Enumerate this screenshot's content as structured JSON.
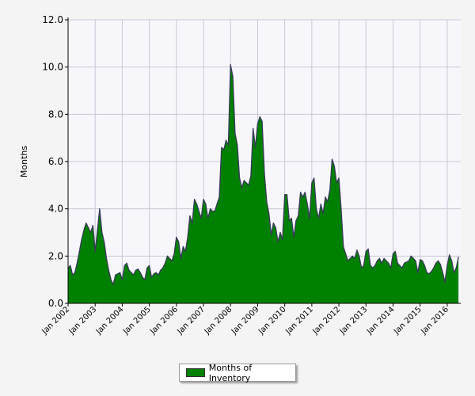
{
  "chart_data": {
    "type": "area",
    "title": "",
    "xlabel": "",
    "ylabel": "Months",
    "ylim": [
      0,
      12
    ],
    "yticks": [
      "0.0",
      "2.0",
      "4.0",
      "6.0",
      "8.0",
      "10.0",
      "12.0"
    ],
    "xlim": [
      "2002-01",
      "2016-07"
    ],
    "xticks": [
      "Jan 2002",
      "Jan 2003",
      "Jan 2004",
      "Jan 2005",
      "Jan 2006",
      "Jan 2007",
      "Jan 2008",
      "Jan 2009",
      "Jan 2010",
      "Jan 2011",
      "Jan 2012",
      "Jan 2013",
      "Jan 2014",
      "Jan 2015",
      "Jan 2016"
    ],
    "grid": true,
    "legend_position": "bottom-center",
    "colors": {
      "fill": "#008000",
      "line": "#3a3a5a",
      "plot_background": "#f7f7fb",
      "grid": "#c8c8d8"
    },
    "series": [
      {
        "name": "Months of Inventory",
        "points": [
          [
            "2002-01",
            1.5
          ],
          [
            "2002-02",
            1.6
          ],
          [
            "2002-03",
            1.2
          ],
          [
            "2002-04",
            1.3
          ],
          [
            "2002-05",
            1.7
          ],
          [
            "2002-06",
            2.2
          ],
          [
            "2002-07",
            2.7
          ],
          [
            "2002-08",
            3.1
          ],
          [
            "2002-09",
            3.4
          ],
          [
            "2002-10",
            3.2
          ],
          [
            "2002-11",
            3.0
          ],
          [
            "2002-12",
            3.3
          ],
          [
            "2003-01",
            2.2
          ],
          [
            "2003-02",
            3.1
          ],
          [
            "2003-03",
            4.0
          ],
          [
            "2003-04",
            3.0
          ],
          [
            "2003-05",
            2.6
          ],
          [
            "2003-06",
            1.9
          ],
          [
            "2003-07",
            1.4
          ],
          [
            "2003-08",
            1.0
          ],
          [
            "2003-09",
            0.8
          ],
          [
            "2003-10",
            1.2
          ],
          [
            "2003-11",
            1.25
          ],
          [
            "2003-12",
            1.3
          ],
          [
            "2004-01",
            1.0
          ],
          [
            "2004-02",
            1.6
          ],
          [
            "2004-03",
            1.7
          ],
          [
            "2004-04",
            1.4
          ],
          [
            "2004-05",
            1.3
          ],
          [
            "2004-06",
            1.2
          ],
          [
            "2004-07",
            1.4
          ],
          [
            "2004-08",
            1.45
          ],
          [
            "2004-09",
            1.3
          ],
          [
            "2004-10",
            1.1
          ],
          [
            "2004-11",
            1.0
          ],
          [
            "2004-12",
            1.5
          ],
          [
            "2005-01",
            1.6
          ],
          [
            "2005-02",
            1.1
          ],
          [
            "2005-03",
            1.25
          ],
          [
            "2005-04",
            1.3
          ],
          [
            "2005-05",
            1.2
          ],
          [
            "2005-06",
            1.4
          ],
          [
            "2005-07",
            1.5
          ],
          [
            "2005-08",
            1.7
          ],
          [
            "2005-09",
            2.0
          ],
          [
            "2005-10",
            1.9
          ],
          [
            "2005-11",
            1.8
          ],
          [
            "2005-12",
            2.1
          ],
          [
            "2006-01",
            2.8
          ],
          [
            "2006-02",
            2.6
          ],
          [
            "2006-03",
            1.9
          ],
          [
            "2006-04",
            2.4
          ],
          [
            "2006-05",
            2.2
          ],
          [
            "2006-06",
            2.8
          ],
          [
            "2006-07",
            3.7
          ],
          [
            "2006-08",
            3.4
          ],
          [
            "2006-09",
            4.4
          ],
          [
            "2006-10",
            4.2
          ],
          [
            "2006-11",
            3.9
          ],
          [
            "2006-12",
            3.6
          ],
          [
            "2007-01",
            4.4
          ],
          [
            "2007-02",
            4.2
          ],
          [
            "2007-03",
            3.6
          ],
          [
            "2007-04",
            4.0
          ],
          [
            "2007-05",
            3.9
          ],
          [
            "2007-06",
            3.9
          ],
          [
            "2007-07",
            4.2
          ],
          [
            "2007-08",
            4.5
          ],
          [
            "2007-09",
            6.6
          ],
          [
            "2007-10",
            6.5
          ],
          [
            "2007-11",
            6.9
          ],
          [
            "2007-12",
            6.7
          ],
          [
            "2008-01",
            10.1
          ],
          [
            "2008-02",
            9.6
          ],
          [
            "2008-03",
            7.2
          ],
          [
            "2008-04",
            6.7
          ],
          [
            "2008-05",
            5.3
          ],
          [
            "2008-06",
            4.9
          ],
          [
            "2008-07",
            5.2
          ],
          [
            "2008-08",
            5.1
          ],
          [
            "2008-09",
            5.0
          ],
          [
            "2008-10",
            5.4
          ],
          [
            "2008-11",
            7.4
          ],
          [
            "2008-12",
            6.6
          ],
          [
            "2009-01",
            7.6
          ],
          [
            "2009-02",
            7.9
          ],
          [
            "2009-03",
            7.7
          ],
          [
            "2009-04",
            5.5
          ],
          [
            "2009-05",
            4.3
          ],
          [
            "2009-06",
            3.8
          ],
          [
            "2009-07",
            2.9
          ],
          [
            "2009-08",
            3.4
          ],
          [
            "2009-09",
            3.2
          ],
          [
            "2009-10",
            2.6
          ],
          [
            "2009-11",
            3.0
          ],
          [
            "2009-12",
            2.7
          ],
          [
            "2010-01",
            4.6
          ],
          [
            "2010-02",
            4.6
          ],
          [
            "2010-03",
            3.5
          ],
          [
            "2010-04",
            3.6
          ],
          [
            "2010-05",
            2.8
          ],
          [
            "2010-06",
            3.5
          ],
          [
            "2010-07",
            3.7
          ],
          [
            "2010-08",
            4.7
          ],
          [
            "2010-09",
            4.5
          ],
          [
            "2010-10",
            4.7
          ],
          [
            "2010-11",
            4.2
          ],
          [
            "2010-12",
            3.6
          ],
          [
            "2011-01",
            5.1
          ],
          [
            "2011-02",
            5.3
          ],
          [
            "2011-03",
            4.0
          ],
          [
            "2011-04",
            3.6
          ],
          [
            "2011-05",
            4.2
          ],
          [
            "2011-06",
            3.8
          ],
          [
            "2011-07",
            4.5
          ],
          [
            "2011-08",
            4.3
          ],
          [
            "2011-09",
            4.8
          ],
          [
            "2011-10",
            6.1
          ],
          [
            "2011-11",
            5.8
          ],
          [
            "2011-12",
            5.1
          ],
          [
            "2012-01",
            5.3
          ],
          [
            "2012-02",
            4.0
          ],
          [
            "2012-03",
            2.4
          ],
          [
            "2012-04",
            2.1
          ],
          [
            "2012-05",
            1.8
          ],
          [
            "2012-06",
            1.9
          ],
          [
            "2012-07",
            2.0
          ],
          [
            "2012-08",
            1.9
          ],
          [
            "2012-09",
            2.25
          ],
          [
            "2012-10",
            2.0
          ],
          [
            "2012-11",
            1.5
          ],
          [
            "2012-12",
            1.6
          ],
          [
            "2013-01",
            2.2
          ],
          [
            "2013-02",
            2.3
          ],
          [
            "2013-03",
            1.6
          ],
          [
            "2013-04",
            1.5
          ],
          [
            "2013-05",
            1.6
          ],
          [
            "2013-06",
            1.8
          ],
          [
            "2013-07",
            1.9
          ],
          [
            "2013-08",
            1.7
          ],
          [
            "2013-09",
            1.9
          ],
          [
            "2013-10",
            1.8
          ],
          [
            "2013-11",
            1.7
          ],
          [
            "2013-12",
            1.5
          ],
          [
            "2014-01",
            2.1
          ],
          [
            "2014-02",
            2.2
          ],
          [
            "2014-03",
            1.7
          ],
          [
            "2014-04",
            1.6
          ],
          [
            "2014-05",
            1.5
          ],
          [
            "2014-06",
            1.7
          ],
          [
            "2014-07",
            1.75
          ],
          [
            "2014-08",
            1.8
          ],
          [
            "2014-09",
            2.0
          ],
          [
            "2014-10",
            1.9
          ],
          [
            "2014-11",
            1.8
          ],
          [
            "2014-12",
            1.3
          ],
          [
            "2015-01",
            1.85
          ],
          [
            "2015-02",
            1.8
          ],
          [
            "2015-03",
            1.6
          ],
          [
            "2015-04",
            1.3
          ],
          [
            "2015-05",
            1.25
          ],
          [
            "2015-06",
            1.35
          ],
          [
            "2015-07",
            1.5
          ],
          [
            "2015-08",
            1.7
          ],
          [
            "2015-09",
            1.8
          ],
          [
            "2015-10",
            1.65
          ],
          [
            "2015-11",
            1.3
          ],
          [
            "2015-12",
            0.9
          ],
          [
            "2016-01",
            1.6
          ],
          [
            "2016-02",
            2.05
          ],
          [
            "2016-03",
            1.8
          ],
          [
            "2016-04",
            1.3
          ],
          [
            "2016-05",
            1.5
          ],
          [
            "2016-06",
            1.95
          ]
        ]
      }
    ]
  }
}
